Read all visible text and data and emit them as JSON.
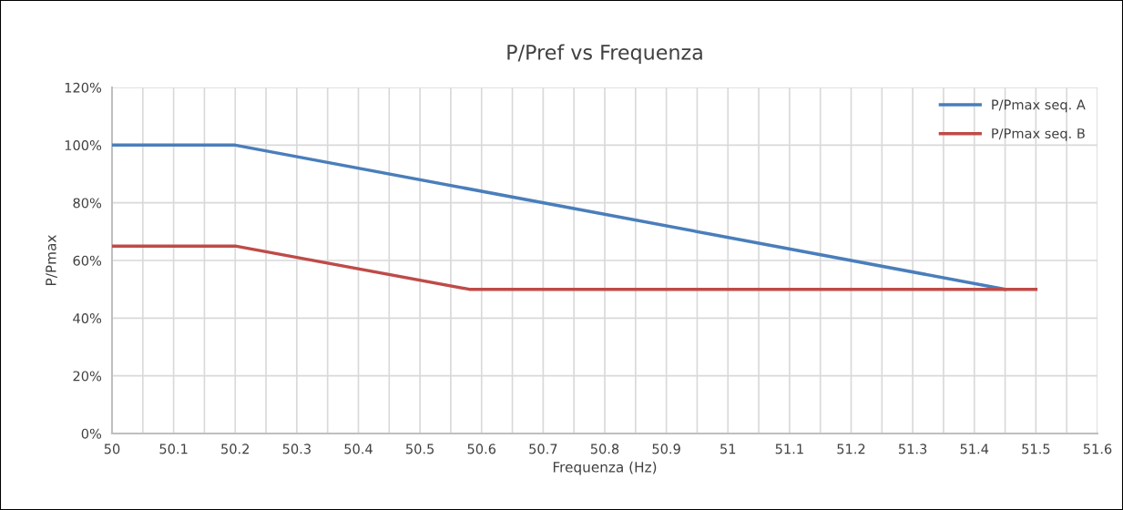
{
  "chart_data": {
    "type": "line",
    "title": "P/Pref vs Frequenza",
    "xlabel": "Frequenza (Hz)",
    "ylabel": "P/Pmax",
    "series": [
      {
        "name": "P/Pmax seq. A",
        "color": "#4a7ebb",
        "x": [
          50,
          50.2,
          51.45
        ],
        "values": [
          100,
          100,
          50
        ]
      },
      {
        "name": "P/Pmax seq. B",
        "color": "#be4b48",
        "x": [
          50,
          50.2,
          50.58,
          51.5
        ],
        "values": [
          65,
          65,
          50,
          50
        ]
      }
    ],
    "xlim": [
      50,
      51.6
    ],
    "xticks": [
      50,
      {
        "value": 50.05,
        "label": null
      },
      50.1,
      {
        "value": 50.15,
        "label": null
      },
      50.2,
      {
        "value": 50.25,
        "label": null
      },
      50.3,
      {
        "value": 50.35,
        "label": null
      },
      50.4,
      {
        "value": 50.45,
        "label": null
      },
      50.5,
      {
        "value": 50.55,
        "label": null
      },
      50.6,
      {
        "value": 50.65,
        "label": null
      },
      50.7,
      {
        "value": 50.75,
        "label": null
      },
      50.8,
      {
        "value": 50.85,
        "label": null
      },
      50.9,
      {
        "value": 50.95,
        "label": null
      },
      51,
      {
        "value": 51.05,
        "label": null
      },
      51.1,
      {
        "value": 51.15,
        "label": null
      },
      51.2,
      {
        "value": 51.25,
        "label": null
      },
      51.3,
      {
        "value": 51.35,
        "label": null
      },
      51.4,
      {
        "value": 51.45,
        "label": null
      },
      51.5,
      {
        "value": 51.55,
        "label": null
      },
      51.6
    ],
    "ylim": [
      0,
      120
    ],
    "yticks": [
      {
        "value": 0,
        "label": "0%"
      },
      {
        "value": 20,
        "label": "20%"
      },
      {
        "value": 40,
        "label": "40%"
      },
      {
        "value": 60,
        "label": "60%"
      },
      {
        "value": 80,
        "label": "80%"
      },
      {
        "value": 100,
        "label": "100%"
      },
      {
        "value": 120,
        "label": "120%"
      }
    ],
    "grid": true,
    "legend": "top right",
    "marker": "none",
    "line_style": "solid"
  }
}
